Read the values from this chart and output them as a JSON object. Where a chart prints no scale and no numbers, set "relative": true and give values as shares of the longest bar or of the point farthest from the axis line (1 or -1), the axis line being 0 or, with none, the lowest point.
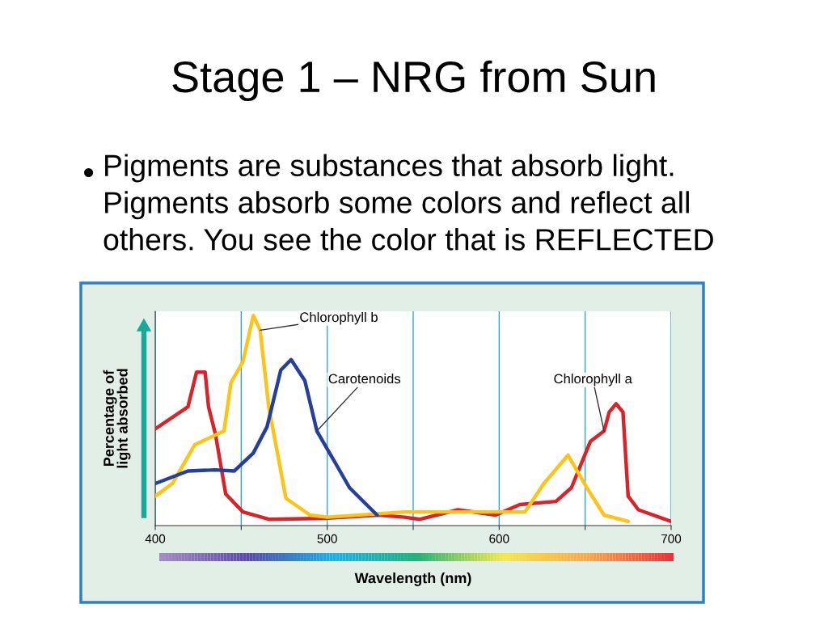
{
  "chart_data": {
    "type": "line",
    "title": "Stage 1 – NRG from Sun",
    "subtitle": "Pigments are substances that absorb light.\nPigments absorb some colors and reflect all\nothers. You see the color that is REFLECTED",
    "xlabel": "Wavelength (nm)",
    "ylabel": "Percentage of\nlight absorbed",
    "relative": true,
    "xlim": [
      400,
      700
    ],
    "xticks": [
      400,
      {
        "value": 450,
        "label": null
      },
      500,
      {
        "value": 550,
        "label": null
      },
      600,
      {
        "value": 650,
        "label": null
      },
      700
    ],
    "grid": "x",
    "marker": "none",
    "line_style": "solid",
    "series": [
      {
        "color": "#d8232a",
        "x": [
          400,
          419,
          424,
          429,
          431,
          435,
          441,
          451,
          466,
          500,
          530,
          545,
          554,
          576,
          598,
          612,
          633,
          642,
          653,
          661,
          664,
          668,
          672,
          675,
          681,
          700
        ],
        "values": [
          0.46,
          0.565,
          0.73,
          0.73,
          0.565,
          0.435,
          0.15,
          0.065,
          0.03,
          0.035,
          0.05,
          0.04,
          0.03,
          0.075,
          0.05,
          0.1,
          0.115,
          0.18,
          0.4,
          0.45,
          0.54,
          0.58,
          0.54,
          0.14,
          0.075,
          0.02
        ]
      },
      {
        "color": "#fcc419",
        "x": [
          400,
          410,
          423,
          440,
          444,
          451,
          457,
          461,
          466,
          476,
          490,
          500,
          545,
          576,
          598,
          615,
          626,
          640,
          651,
          661,
          675
        ],
        "values": [
          0.14,
          0.2,
          0.385,
          0.45,
          0.68,
          0.78,
          1.0,
          0.93,
          0.565,
          0.13,
          0.05,
          0.04,
          0.065,
          0.065,
          0.065,
          0.065,
          0.2,
          0.335,
          0.18,
          0.05,
          0.02
        ]
      },
      {
        "color": "#26409a",
        "x": [
          400,
          419,
          435,
          446,
          457,
          465,
          473,
          479,
          487,
          494,
          506,
          513,
          529
        ],
        "values": [
          0.2,
          0.26,
          0.265,
          0.26,
          0.345,
          0.47,
          0.74,
          0.79,
          0.69,
          0.45,
          0.28,
          0.18,
          0.05
        ]
      }
    ],
    "annotations": [
      {
        "text": "Chlorophyll b",
        "x": 461,
        "y": 0.93
      },
      {
        "text": "Carotenoids",
        "x": 494,
        "y": 0.45
      },
      {
        "text": "Chlorophyll a",
        "x": 661,
        "y": 0.45
      }
    ]
  }
}
